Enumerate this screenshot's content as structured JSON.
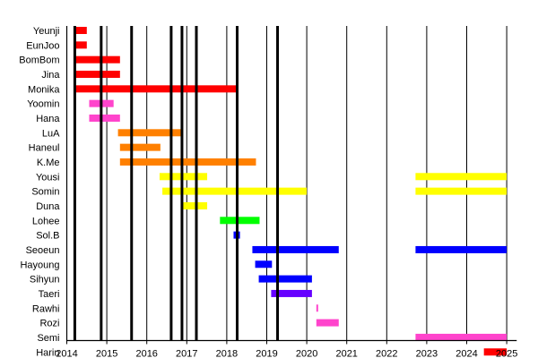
{
  "chart_data": {
    "type": "timeline",
    "title": "",
    "xlabel": "",
    "ylabel": "",
    "xlim": [
      2014,
      2025.25
    ],
    "x_ticks": [
      "2014",
      "2015",
      "2016",
      "2017",
      "2018",
      "2019",
      "2020",
      "2021",
      "2022",
      "2023",
      "2024",
      "2025"
    ],
    "grid": "vertical yearly lines",
    "legend": "none",
    "colors": {
      "red": "#ff0000",
      "pink": "#ff44cc",
      "orange": "#ff8000",
      "yellow": "#ffff00",
      "green": "#00ff00",
      "blue": "#0000ff",
      "purple": "#6600ff"
    },
    "event_lines": [
      2014.2,
      2014.86,
      2015.62,
      2016.61,
      2016.88,
      2017.24,
      2018.26,
      2019.27
    ],
    "members": [
      {
        "name": "Yeunji",
        "color": "red",
        "periods": [
          [
            2014.2,
            2014.5
          ]
        ]
      },
      {
        "name": "EunJoo",
        "color": "red",
        "periods": [
          [
            2014.2,
            2014.5
          ]
        ]
      },
      {
        "name": "BomBom",
        "color": "red",
        "periods": [
          [
            2014.2,
            2015.33
          ]
        ]
      },
      {
        "name": "Jina",
        "color": "red",
        "periods": [
          [
            2014.2,
            2015.33
          ]
        ]
      },
      {
        "name": "Monika",
        "color": "red",
        "periods": [
          [
            2014.2,
            2018.23
          ]
        ]
      },
      {
        "name": "Yoomin",
        "color": "pink",
        "periods": [
          [
            2014.56,
            2015.17
          ]
        ]
      },
      {
        "name": "Hana",
        "color": "pink",
        "periods": [
          [
            2014.56,
            2015.33
          ]
        ]
      },
      {
        "name": "LuA",
        "color": "orange",
        "periods": [
          [
            2015.28,
            2016.9
          ]
        ]
      },
      {
        "name": "Haneul",
        "color": "orange",
        "periods": [
          [
            2015.33,
            2016.34
          ]
        ]
      },
      {
        "name": "K.Me",
        "color": "orange",
        "periods": [
          [
            2015.33,
            2018.73
          ]
        ]
      },
      {
        "name": "Yousi",
        "color": "yellow",
        "periods": [
          [
            2016.32,
            2017.51
          ],
          [
            2022.72,
            2025
          ]
        ]
      },
      {
        "name": "Somin",
        "color": "yellow",
        "periods": [
          [
            2016.39,
            2020.0
          ],
          [
            2022.72,
            2025
          ]
        ]
      },
      {
        "name": "Duna",
        "color": "yellow",
        "periods": [
          [
            2016.88,
            2017.51
          ]
        ]
      },
      {
        "name": "Lohee",
        "color": "green",
        "periods": [
          [
            2017.83,
            2018.82
          ]
        ]
      },
      {
        "name": "Sol.B",
        "color": "blue",
        "periods": [
          [
            2018.17,
            2018.33
          ]
        ]
      },
      {
        "name": "Seoeun",
        "color": "blue",
        "periods": [
          [
            2018.64,
            2020.8
          ],
          [
            2022.72,
            2025
          ]
        ]
      },
      {
        "name": "Hayoung",
        "color": "blue",
        "periods": [
          [
            2018.71,
            2019.13
          ]
        ]
      },
      {
        "name": "Sihyun",
        "color": "blue",
        "periods": [
          [
            2018.8,
            2020.13
          ]
        ]
      },
      {
        "name": "Taeri",
        "color": "purple",
        "periods": [
          [
            2019.11,
            2020.13
          ]
        ]
      },
      {
        "name": "Rawhi",
        "color": "pink",
        "periods": [
          [
            2020.24,
            2020.28
          ]
        ]
      },
      {
        "name": "Rozi",
        "color": "pink",
        "periods": [
          [
            2020.24,
            2020.8
          ]
        ]
      },
      {
        "name": "Semi",
        "color": "pink",
        "periods": [
          [
            2022.72,
            2025
          ]
        ]
      },
      {
        "name": "Harin",
        "color": "red",
        "periods": [
          [
            2024.43,
            2025
          ]
        ]
      }
    ]
  }
}
